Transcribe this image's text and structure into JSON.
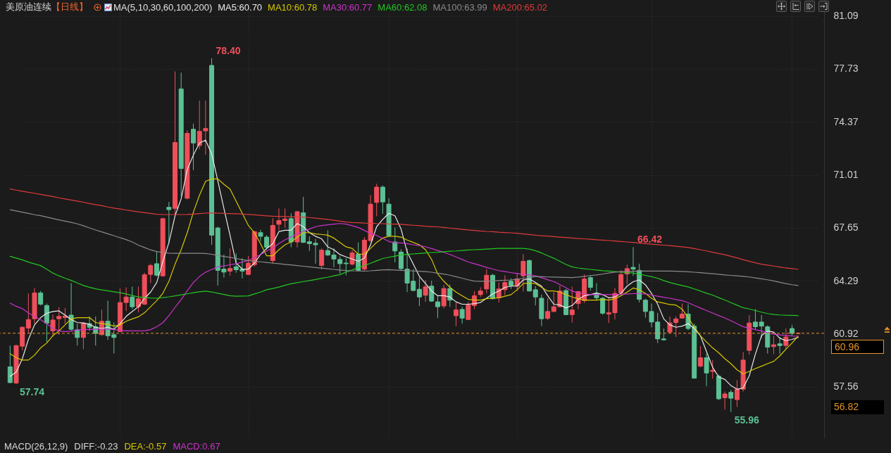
{
  "chart_data": {
    "type": "candlestick",
    "title": "美原油连续",
    "subtitle": "【日线】",
    "legend_title": "MA(5,10,30,60,100,200)",
    "legend": "top",
    "tick_labels": "y",
    "grid": true,
    "categories": [
      null,
      null,
      null,
      null,
      null,
      null,
      null,
      null,
      null,
      null,
      null,
      null,
      null,
      null,
      null,
      null,
      null,
      null,
      null,
      null,
      null,
      null,
      null,
      null,
      null,
      null,
      null,
      null,
      null,
      null,
      null,
      null,
      null,
      null,
      null,
      null,
      null,
      null,
      null,
      null,
      null,
      null,
      null,
      null,
      null,
      null,
      null,
      null,
      null,
      null,
      null,
      null,
      null,
      null,
      null,
      null,
      null,
      null,
      null,
      null,
      null,
      null,
      null,
      null,
      null,
      null,
      null,
      null,
      null,
      null,
      null,
      null,
      null,
      null,
      null,
      null,
      null,
      null,
      null,
      null,
      null,
      null,
      null,
      null,
      null,
      null,
      null,
      null,
      null,
      null,
      null,
      null,
      null,
      null,
      null,
      null,
      null,
      null,
      null,
      null,
      null,
      null,
      null,
      null,
      null,
      null,
      null,
      null,
      null,
      null,
      null,
      null,
      null,
      null,
      null,
      null,
      null,
      null,
      null,
      null,
      null,
      null,
      null,
      null,
      null,
      null,
      null,
      null,
      null,
      null
    ],
    "ylim": [
      54.3,
      82.1
    ],
    "yticks": [
      57.56,
      60.92,
      64.29,
      67.65,
      71.01,
      74.37,
      77.73,
      81.09
    ],
    "ohlc": [
      [
        58.83,
        60.18,
        57.78,
        57.83
      ],
      [
        57.8,
        60.2,
        57.74,
        60.18
      ],
      [
        60.14,
        61.4,
        59.88,
        61.34
      ],
      [
        61.29,
        63.49,
        60.95,
        61.83
      ],
      [
        61.88,
        63.83,
        61.57,
        63.52
      ],
      [
        63.52,
        63.64,
        62.72,
        62.8
      ],
      [
        62.72,
        62.84,
        60.41,
        61.6
      ],
      [
        61.11,
        62.14,
        60.75,
        61.8
      ],
      [
        61.88,
        62.61,
        60.87,
        62.03
      ],
      [
        61.95,
        62.56,
        61.57,
        62.05
      ],
      [
        62.11,
        64.14,
        61.11,
        61.21
      ],
      [
        61.18,
        61.57,
        60.18,
        60.69
      ],
      [
        60.69,
        61.64,
        59.95,
        61.61
      ],
      [
        61.57,
        62.03,
        61.11,
        61.34
      ],
      [
        61.37,
        62.03,
        60.18,
        60.95
      ],
      [
        60.87,
        62.46,
        60.8,
        61.72
      ],
      [
        61.72,
        63.03,
        60.54,
        60.8
      ],
      [
        60.87,
        61.64,
        59.67,
        60.69
      ],
      [
        61.06,
        63.8,
        61.03,
        62.91
      ],
      [
        62.91,
        63.87,
        62.38,
        63.26
      ],
      [
        63.26,
        63.92,
        62.49,
        62.64
      ],
      [
        62.64,
        63.92,
        62.29,
        63.15
      ],
      [
        62.8,
        64.8,
        62.75,
        64.67
      ],
      [
        64.69,
        65.37,
        64.14,
        65.26
      ],
      [
        65.37,
        66.14,
        64.57,
        64.64
      ],
      [
        64.6,
        68.29,
        64.54,
        68.23
      ],
      [
        68.95,
        69.29,
        66.64,
        68.8
      ],
      [
        68.88,
        77.57,
        68.49,
        73.06
      ],
      [
        76.46,
        77.49,
        69.64,
        71.41
      ],
      [
        69.52,
        73.83,
        69.46,
        73.64
      ],
      [
        73.9,
        74.26,
        71.31,
        73.03
      ],
      [
        72.87,
        75.72,
        72.64,
        73.77
      ],
      [
        73.8,
        75.72,
        72.29,
        73.95
      ],
      [
        77.95,
        78.4,
        66.57,
        67.18
      ],
      [
        67.64,
        67.72,
        63.98,
        64.95
      ],
      [
        65.03,
        65.95,
        64.49,
        64.84
      ],
      [
        64.9,
        66.34,
        64.6,
        65.07
      ],
      [
        65.18,
        66.03,
        64.8,
        64.99
      ],
      [
        65.03,
        65.72,
        64.44,
        64.9
      ],
      [
        64.69,
        65.87,
        64.64,
        65.41
      ],
      [
        65.31,
        67.46,
        65.18,
        67.41
      ],
      [
        67.34,
        67.52,
        66.8,
        67.11
      ],
      [
        67.06,
        67.18,
        66.26,
        66.41
      ],
      [
        65.57,
        68.26,
        65.37,
        67.8
      ],
      [
        67.87,
        68.88,
        67.49,
        68.11
      ],
      [
        68.11,
        68.88,
        67.64,
        68.21
      ],
      [
        68.23,
        68.57,
        66.41,
        66.75
      ],
      [
        66.75,
        68.72,
        66.41,
        68.67
      ],
      [
        68.6,
        69.61,
        66.69,
        66.72
      ],
      [
        66.77,
        67.11,
        66.18,
        66.64
      ],
      [
        66.67,
        66.95,
        65.37,
        66.57
      ],
      [
        65.26,
        66.34,
        65.0,
        66.23
      ],
      [
        66.21,
        67.49,
        65.87,
        65.92
      ],
      [
        65.92,
        66.34,
        65.15,
        65.67
      ],
      [
        65.64,
        65.83,
        64.75,
        65.37
      ],
      [
        65.41,
        65.72,
        64.64,
        65.37
      ],
      [
        65.34,
        66.23,
        65.26,
        66.06
      ],
      [
        65.98,
        66.72,
        64.9,
        64.95
      ],
      [
        65.03,
        67.06,
        64.95,
        66.87
      ],
      [
        66.84,
        69.72,
        66.75,
        69.15
      ],
      [
        69.26,
        70.44,
        68.38,
        70.23
      ],
      [
        70.23,
        70.34,
        68.54,
        69.29
      ],
      [
        69.15,
        69.52,
        67.06,
        67.15
      ],
      [
        66.75,
        67.67,
        65.46,
        66.18
      ],
      [
        66.11,
        66.29,
        64.95,
        65.06
      ],
      [
        65.03,
        66.34,
        63.57,
        64.14
      ],
      [
        64.26,
        65.03,
        63.64,
        63.67
      ],
      [
        63.75,
        64.49,
        62.69,
        63.26
      ],
      [
        63.37,
        64.34,
        62.95,
        63.91
      ],
      [
        63.95,
        64.29,
        62.95,
        63.0
      ],
      [
        62.95,
        63.34,
        61.92,
        62.64
      ],
      [
        62.69,
        64.03,
        62.54,
        63.8
      ],
      [
        63.8,
        64.06,
        62.64,
        63.06
      ],
      [
        62.07,
        62.95,
        61.41,
        62.44
      ],
      [
        62.47,
        62.64,
        61.57,
        61.92
      ],
      [
        61.83,
        62.95,
        61.8,
        62.75
      ],
      [
        62.72,
        63.64,
        62.49,
        63.34
      ],
      [
        63.41,
        63.87,
        63.26,
        63.64
      ],
      [
        63.77,
        65.03,
        63.49,
        64.64
      ],
      [
        64.64,
        64.72,
        63.11,
        63.15
      ],
      [
        63.21,
        64.18,
        62.91,
        63.77
      ],
      [
        63.72,
        64.64,
        63.37,
        64.18
      ],
      [
        64.26,
        64.44,
        63.77,
        63.98
      ],
      [
        63.95,
        64.8,
        63.64,
        64.41
      ],
      [
        64.6,
        65.98,
        63.61,
        65.52
      ],
      [
        65.57,
        65.64,
        63.61,
        63.64
      ],
      [
        63.72,
        63.95,
        62.72,
        63.26
      ],
      [
        63.18,
        63.41,
        61.41,
        61.88
      ],
      [
        61.9,
        63.18,
        61.8,
        62.34
      ],
      [
        62.34,
        63.57,
        62.3,
        62.64
      ],
      [
        62.64,
        63.98,
        62.6,
        63.64
      ],
      [
        63.67,
        63.77,
        62.11,
        62.14
      ],
      [
        62.14,
        63.92,
        61.64,
        62.44
      ],
      [
        62.84,
        63.64,
        62.49,
        63.6
      ],
      [
        63.03,
        64.69,
        62.88,
        64.41
      ],
      [
        64.49,
        64.64,
        63.67,
        63.87
      ],
      [
        63.46,
        64.14,
        63.03,
        63.21
      ],
      [
        63.18,
        63.26,
        62.14,
        62.23
      ],
      [
        62.18,
        63.26,
        61.61,
        62.26
      ],
      [
        62.26,
        63.83,
        61.83,
        63.49
      ],
      [
        63.52,
        64.95,
        63.49,
        64.69
      ],
      [
        64.72,
        65.31,
        64.07,
        65.06
      ],
      [
        65.14,
        66.42,
        64.6,
        65.03
      ],
      [
        64.95,
        65.37,
        62.91,
        63.11
      ],
      [
        63.06,
        63.15,
        61.95,
        62.34
      ],
      [
        62.34,
        62.84,
        61.34,
        61.67
      ],
      [
        61.67,
        62.26,
        60.34,
        60.6
      ],
      [
        60.6,
        61.26,
        60.5,
        60.54
      ],
      [
        61.03,
        62.03,
        60.95,
        61.61
      ],
      [
        61.64,
        62.03,
        60.72,
        61.87
      ],
      [
        61.92,
        62.84,
        61.9,
        62.18
      ],
      [
        62.18,
        62.8,
        61.15,
        61.26
      ],
      [
        61.41,
        61.57,
        58.08,
        58.11
      ],
      [
        58.87,
        60.14,
        58.8,
        59.41
      ],
      [
        59.41,
        59.67,
        57.61,
        58.44
      ],
      [
        58.54,
        59.26,
        58.08,
        58.6
      ],
      [
        58.23,
        58.34,
        56.72,
        56.8
      ],
      [
        56.87,
        57.26,
        56.11,
        57.11
      ],
      [
        57.21,
        57.37,
        55.96,
        56.84
      ],
      [
        56.75,
        57.98,
        56.29,
        57.41
      ],
      [
        57.41,
        59.77,
        57.26,
        59.26
      ],
      [
        59.87,
        62.11,
        59.61,
        61.61
      ],
      [
        61.67,
        62.49,
        61.18,
        61.37
      ],
      [
        61.67,
        62.11,
        60.64,
        61.41
      ],
      [
        61.37,
        61.46,
        59.67,
        60.08
      ],
      [
        60.11,
        60.8,
        59.64,
        60.23
      ],
      [
        60.29,
        60.72,
        59.64,
        60.18
      ],
      [
        60.18,
        61.26,
        59.95,
        60.72
      ],
      [
        61.26,
        61.49,
        60.8,
        60.95
      ],
      [
        60.95,
        61.0,
        60.9,
        60.96
      ]
    ],
    "series": [
      {
        "name": "MA5:60.70",
        "type": "line",
        "color": "#e8e8e8",
        "values": [
          58.23,
          58.49,
          59.34,
          60.57,
          61.49,
          61.95,
          62.23,
          62.34,
          62.38,
          62.11,
          61.83,
          61.64,
          61.61,
          61.52,
          61.34,
          61.26,
          61.34,
          61.21,
          61.57,
          62.03,
          62.34,
          62.64,
          63.18,
          63.57,
          64.18,
          65.49,
          66.72,
          68.41,
          69.49,
          71.34,
          72.26,
          73.03,
          73.21,
          72.34,
          70.64,
          68.87,
          67.18,
          65.41,
          65.03,
          65.03,
          65.41,
          65.95,
          66.34,
          66.64,
          67.41,
          67.49,
          67.49,
          67.92,
          67.72,
          67.34,
          67.11,
          66.95,
          66.44,
          66.26,
          65.95,
          65.8,
          65.67,
          65.52,
          65.72,
          66.57,
          67.72,
          68.18,
          68.57,
          68.41,
          67.57,
          66.11,
          65.34,
          64.57,
          64.11,
          63.64,
          63.34,
          63.34,
          63.26,
          62.95,
          62.8,
          62.8,
          62.84,
          62.91,
          63.18,
          63.46,
          63.64,
          63.87,
          63.95,
          63.95,
          64.34,
          64.41,
          64.18,
          63.95,
          63.34,
          62.8,
          62.75,
          62.57,
          62.72,
          63.11,
          63.34,
          63.41,
          63.52,
          63.41,
          63.21,
          63.26,
          63.49,
          63.95,
          64.23,
          64.34,
          64.03,
          63.49,
          62.8,
          61.87,
          61.49,
          61.34,
          61.41,
          61.57,
          61.26,
          60.8,
          59.8,
          58.8,
          58.18,
          58.03,
          57.64,
          57.41,
          57.49,
          58.26,
          59.64,
          60.8,
          61.11,
          61.03,
          60.64,
          60.49,
          60.57,
          60.7
        ]
      },
      {
        "name": "MA10:60.78",
        "type": "line",
        "color": "#d6c800",
        "values": [
          59.67,
          59.41,
          59.26,
          59.26,
          59.57,
          60.03,
          60.34,
          60.8,
          61.11,
          61.49,
          61.87,
          61.95,
          61.95,
          61.95,
          61.64,
          61.57,
          61.52,
          61.41,
          61.49,
          61.72,
          61.87,
          62.0,
          62.26,
          62.64,
          63.03,
          63.49,
          64.26,
          65.34,
          66.26,
          67.34,
          68.64,
          69.72,
          70.6,
          70.75,
          70.75,
          70.41,
          70.11,
          69.34,
          68.57,
          67.8,
          67.34,
          66.64,
          65.87,
          65.87,
          66.26,
          66.57,
          66.75,
          67.06,
          67.34,
          67.34,
          67.26,
          67.23,
          67.18,
          67.0,
          66.72,
          66.44,
          66.34,
          65.98,
          65.98,
          66.34,
          66.72,
          67.0,
          67.11,
          67.11,
          67.06,
          66.87,
          66.72,
          66.57,
          66.26,
          65.64,
          64.72,
          64.26,
          63.87,
          63.57,
          63.34,
          63.11,
          63.06,
          63.06,
          63.15,
          63.18,
          63.21,
          63.31,
          63.41,
          63.72,
          64.11,
          64.14,
          64.11,
          63.87,
          63.64,
          63.64,
          63.57,
          63.41,
          63.26,
          63.15,
          63.06,
          63.06,
          63.06,
          63.11,
          63.06,
          63.15,
          63.34,
          63.57,
          63.83,
          63.72,
          63.49,
          63.18,
          62.95,
          62.87,
          62.78,
          62.75,
          62.49,
          61.95,
          61.34,
          60.8,
          60.41,
          60.03,
          59.72,
          59.34,
          59.03,
          58.64,
          58.38,
          58.54,
          58.72,
          58.87,
          59.03,
          59.18,
          59.52,
          59.95,
          60.34,
          60.78
        ]
      },
      {
        "name": "MA30:60.77",
        "type": "line",
        "color": "#cc33cc",
        "values": [
          62.87,
          62.67,
          62.52,
          62.25,
          62.03,
          61.82,
          61.56,
          61.27,
          61.11,
          61.07,
          61.09,
          61.17,
          61.19,
          61.21,
          61.21,
          61.21,
          61.21,
          61.2,
          61.13,
          61.11,
          61.11,
          61.11,
          61.11,
          61.19,
          61.37,
          61.63,
          62.08,
          62.6,
          63.1,
          63.65,
          64.18,
          64.56,
          64.83,
          65.0,
          65.18,
          65.23,
          65.3,
          65.37,
          65.47,
          65.57,
          65.77,
          65.95,
          66.18,
          66.35,
          66.65,
          66.88,
          67.07,
          67.27,
          67.42,
          67.57,
          67.72,
          67.79,
          67.84,
          67.88,
          67.92,
          67.88,
          67.78,
          67.67,
          67.48,
          67.29,
          67.16,
          66.98,
          66.78,
          66.7,
          66.69,
          66.64,
          66.57,
          66.52,
          66.45,
          66.33,
          66.21,
          66.09,
          65.96,
          65.8,
          65.64,
          65.48,
          65.37,
          65.26,
          65.14,
          65.03,
          64.93,
          64.87,
          64.81,
          64.75,
          64.7,
          64.66,
          64.6,
          64.48,
          64.36,
          64.24,
          64.05,
          63.85,
          63.63,
          63.53,
          63.46,
          63.41,
          63.41,
          63.41,
          63.41,
          63.42,
          63.43,
          63.45,
          63.47,
          63.48,
          63.45,
          63.38,
          63.31,
          63.24,
          63.18,
          63.1,
          63.03,
          62.9,
          62.72,
          62.56,
          62.4,
          62.24,
          62.08,
          61.93,
          61.75,
          61.56,
          61.38,
          61.28,
          61.19,
          61.1,
          61.0,
          60.9,
          60.85,
          60.82,
          60.79,
          60.77
        ]
      },
      {
        "name": "MA60:62.08",
        "type": "line",
        "color": "#22c822",
        "values": [
          65.84,
          65.73,
          65.62,
          65.47,
          65.36,
          65.25,
          65.02,
          64.78,
          64.6,
          64.45,
          64.31,
          64.15,
          63.99,
          63.88,
          63.78,
          63.71,
          63.65,
          63.59,
          63.53,
          63.45,
          63.35,
          63.26,
          63.23,
          63.2,
          63.18,
          63.22,
          63.27,
          63.33,
          63.4,
          63.46,
          63.53,
          63.59,
          63.63,
          63.58,
          63.5,
          63.42,
          63.34,
          63.31,
          63.32,
          63.33,
          63.45,
          63.57,
          63.72,
          63.8,
          63.89,
          64.0,
          64.1,
          64.17,
          64.24,
          64.3,
          64.37,
          64.45,
          64.52,
          64.6,
          64.68,
          64.84,
          64.97,
          65.13,
          65.26,
          65.4,
          65.55,
          65.7,
          65.78,
          65.85,
          65.93,
          65.96,
          65.99,
          66.02,
          66.05,
          66.08,
          66.1,
          66.13,
          66.16,
          66.18,
          66.21,
          66.24,
          66.26,
          66.28,
          66.3,
          66.32,
          66.34,
          66.34,
          66.34,
          66.34,
          66.34,
          66.3,
          66.2,
          66.05,
          65.88,
          65.72,
          65.52,
          65.32,
          65.17,
          65.1,
          65.05,
          65.01,
          64.97,
          64.93,
          64.9,
          64.87,
          64.84,
          64.8,
          64.78,
          64.7,
          64.63,
          64.55,
          64.45,
          64.3,
          64.18,
          64.08,
          63.99,
          63.9,
          63.77,
          63.64,
          63.5,
          63.38,
          63.22,
          63.07,
          62.9,
          62.74,
          62.58,
          62.5,
          62.4,
          62.3,
          62.21,
          62.15,
          62.12,
          62.1,
          62.09,
          62.08
        ]
      },
      {
        "name": "MA100:63.99",
        "type": "line",
        "color": "#8a8a8a",
        "values": [
          68.8,
          68.72,
          68.64,
          68.56,
          68.48,
          68.42,
          68.33,
          68.24,
          68.15,
          68.07,
          67.99,
          67.9,
          67.78,
          67.64,
          67.51,
          67.39,
          67.27,
          67.15,
          67.02,
          66.9,
          66.75,
          66.55,
          66.4,
          66.25,
          66.14,
          66.08,
          66.04,
          66.03,
          66.03,
          66.03,
          66.03,
          66.03,
          66.02,
          65.97,
          65.9,
          65.83,
          65.77,
          65.7,
          65.63,
          65.57,
          65.53,
          65.49,
          65.45,
          65.41,
          65.37,
          65.33,
          65.29,
          65.25,
          65.21,
          65.17,
          65.13,
          65.09,
          65.05,
          65.01,
          64.97,
          64.94,
          64.92,
          64.91,
          64.9,
          64.92,
          64.95,
          64.98,
          64.99,
          64.97,
          64.95,
          64.93,
          64.91,
          64.89,
          64.87,
          64.83,
          64.77,
          64.71,
          64.64,
          64.55,
          64.45,
          64.35,
          64.27,
          64.26,
          64.26,
          64.28,
          64.3,
          64.32,
          64.34,
          64.39,
          64.44,
          64.5,
          64.56,
          64.55,
          64.53,
          64.52,
          64.51,
          64.5,
          64.49,
          64.52,
          64.57,
          64.62,
          64.66,
          64.72,
          64.78,
          64.84,
          64.87,
          64.88,
          64.89,
          64.9,
          64.9,
          64.9,
          64.9,
          64.9,
          64.9,
          64.89,
          64.88,
          64.86,
          64.83,
          64.8,
          64.77,
          64.74,
          64.7,
          64.66,
          64.63,
          64.6,
          64.57,
          64.53,
          64.47,
          64.41,
          64.35,
          64.28,
          64.19,
          64.11,
          64.04,
          63.99
        ]
      },
      {
        "name": "MA200:65.02",
        "type": "line",
        "color": "#e03a3a",
        "values": [
          70.11,
          70.04,
          69.97,
          69.9,
          69.84,
          69.77,
          69.7,
          69.63,
          69.55,
          69.48,
          69.41,
          69.34,
          69.27,
          69.19,
          69.12,
          69.05,
          68.97,
          68.9,
          68.84,
          68.78,
          68.72,
          68.66,
          68.61,
          68.56,
          68.51,
          68.49,
          68.49,
          68.49,
          68.49,
          68.5,
          68.52,
          68.55,
          68.58,
          68.6,
          68.58,
          68.56,
          68.55,
          68.54,
          68.52,
          68.5,
          68.47,
          68.44,
          68.41,
          68.38,
          68.37,
          68.36,
          68.35,
          68.34,
          68.33,
          68.3,
          68.26,
          68.22,
          68.18,
          68.13,
          68.07,
          68.02,
          67.98,
          67.97,
          67.95,
          67.94,
          67.92,
          67.91,
          67.89,
          67.88,
          67.87,
          67.84,
          67.81,
          67.78,
          67.75,
          67.73,
          67.71,
          67.67,
          67.63,
          67.59,
          67.55,
          67.51,
          67.48,
          67.45,
          67.42,
          67.4,
          67.37,
          67.35,
          67.33,
          67.3,
          67.26,
          67.22,
          67.18,
          67.15,
          67.12,
          67.09,
          67.06,
          67.03,
          67.0,
          66.97,
          66.95,
          66.92,
          66.89,
          66.87,
          66.84,
          66.81,
          66.78,
          66.75,
          66.72,
          66.68,
          66.64,
          66.61,
          66.58,
          66.55,
          66.52,
          66.48,
          66.44,
          66.4,
          66.33,
          66.26,
          66.18,
          66.1,
          66.02,
          65.94,
          65.84,
          65.74,
          65.63,
          65.53,
          65.43,
          65.34,
          65.28,
          65.22,
          65.16,
          65.1,
          65.06,
          65.02
        ]
      }
    ],
    "ref_lines": [
      {
        "axis": "y",
        "value": 60.96,
        "label": "60.96",
        "color": "#e8922a",
        "line_style": "dashed"
      }
    ],
    "annotations": [
      "56.82",
      "78.40",
      "66.42",
      "57.74",
      "55.96",
      "MACD(26,12,9)",
      "DIFF:-0.23",
      "DEA:-0.57",
      "MACD:0.67"
    ]
  }
}
